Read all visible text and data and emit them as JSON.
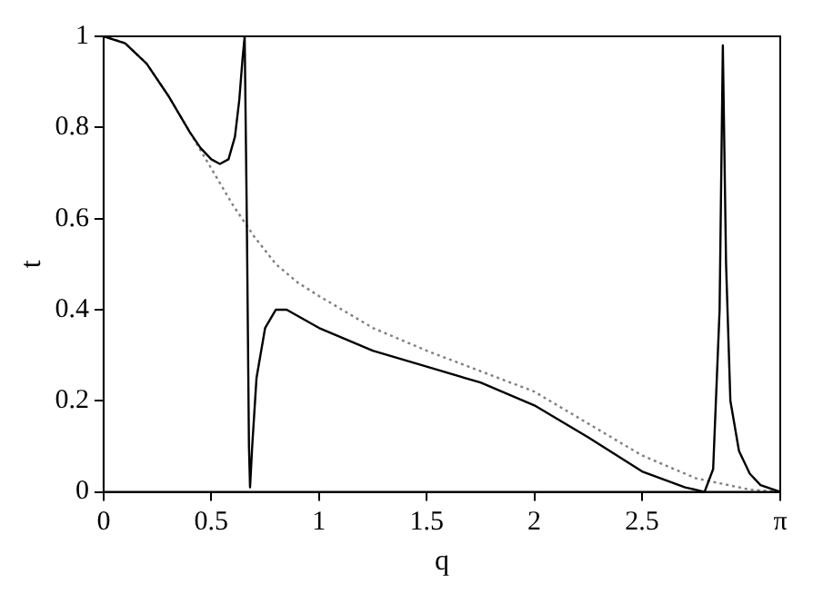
{
  "chart_data": {
    "type": "line",
    "xlabel": "q",
    "ylabel": "t",
    "xlim": [
      0,
      3.1416
    ],
    "ylim": [
      0,
      1
    ],
    "xticks": [
      0,
      0.5,
      1,
      1.5,
      2,
      2.5,
      {
        "value": 3.1416,
        "label": "π"
      }
    ],
    "yticks": [
      0,
      0.2,
      0.4,
      0.6,
      0.8,
      1
    ],
    "grid": false,
    "legend": false,
    "marker": "none",
    "series": [
      {
        "color": "#000000",
        "line_style": "solid",
        "x": [
          0,
          0.1,
          0.2,
          0.3,
          0.4,
          0.45,
          0.5,
          0.54,
          0.58,
          0.61,
          0.63,
          0.645,
          0.655,
          0.665,
          0.675,
          0.68,
          0.69,
          0.71,
          0.75,
          0.8,
          0.85,
          1,
          1.25,
          1.5,
          1.75,
          2,
          2.25,
          2.5,
          2.7,
          2.79,
          2.83,
          2.86,
          2.875,
          2.89,
          2.91,
          2.95,
          3,
          3.05,
          3.1416
        ],
        "values": [
          1,
          0.985,
          0.94,
          0.87,
          0.79,
          0.755,
          0.73,
          0.72,
          0.73,
          0.78,
          0.86,
          0.95,
          1,
          0.6,
          0.1,
          0.01,
          0.1,
          0.25,
          0.36,
          0.4,
          0.4,
          0.36,
          0.31,
          0.275,
          0.24,
          0.19,
          0.12,
          0.045,
          0.01,
          0,
          0.05,
          0.4,
          0.98,
          0.5,
          0.2,
          0.09,
          0.04,
          0.015,
          0
        ]
      },
      {
        "color": "#808080",
        "line_style": "dotted",
        "x": [
          0,
          0.1,
          0.2,
          0.3,
          0.4,
          0.5,
          0.6,
          0.7,
          0.8,
          0.9,
          1,
          1.25,
          1.5,
          1.75,
          2,
          2.25,
          2.5,
          2.75,
          3,
          3.1416
        ],
        "values": [
          1,
          0.985,
          0.94,
          0.87,
          0.79,
          0.71,
          0.63,
          0.56,
          0.5,
          0.46,
          0.43,
          0.36,
          0.31,
          0.265,
          0.22,
          0.15,
          0.08,
          0.03,
          0.005,
          0
        ]
      }
    ]
  }
}
